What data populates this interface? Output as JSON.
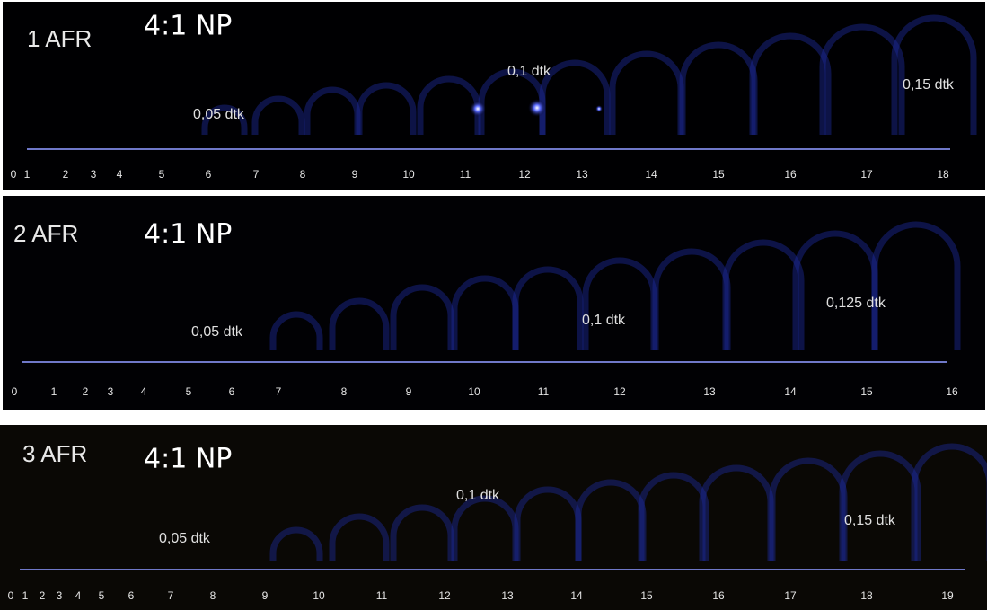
{
  "panels": [
    {
      "label": "1 AFR",
      "ratio": "4:1 NP",
      "times": [
        "0,05 dtk",
        "0,1 dtk",
        "0,15 dtk"
      ],
      "ruler": [
        0,
        1,
        2,
        3,
        4,
        5,
        6,
        7,
        8,
        9,
        10,
        11,
        12,
        13,
        14,
        15,
        16,
        17,
        18
      ]
    },
    {
      "label": "2 AFR",
      "ratio": "4:1 NP",
      "times": [
        "0,05 dtk",
        "0,1 dtk",
        "0,125 dtk"
      ],
      "ruler": [
        0,
        1,
        2,
        3,
        4,
        5,
        6,
        7,
        8,
        9,
        10,
        11,
        12,
        13,
        14,
        15,
        16
      ]
    },
    {
      "label": "3 AFR",
      "ratio": "4:1 NP",
      "times": [
        "0,05 dtk",
        "0,1 dtk",
        "0,15 dtk"
      ],
      "ruler": [
        0,
        1,
        2,
        3,
        4,
        5,
        6,
        7,
        8,
        9,
        10,
        11,
        12,
        13,
        14,
        15,
        16,
        17,
        18,
        19
      ]
    }
  ]
}
